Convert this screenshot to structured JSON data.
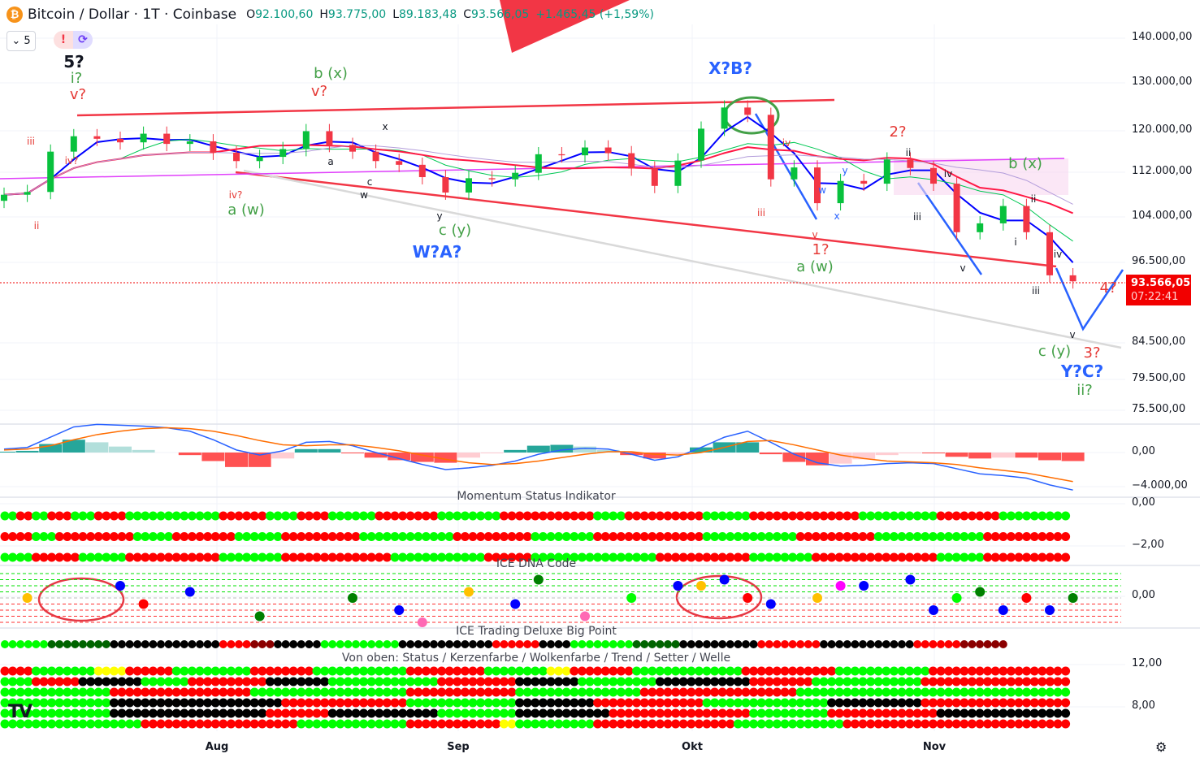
{
  "header": {
    "symbol": "Bitcoin / Dollar · 1T · Coinbase",
    "icon": "bitcoin-icon",
    "o_label": "O",
    "o": "92.100,60",
    "h_label": "H",
    "h": "93.775,00",
    "l_label": "L",
    "l": "89.183,48",
    "c_label": "C",
    "c": "93.566,05",
    "change": "+1.465,45 (+1,59%)",
    "up_color": "#089981"
  },
  "toolbar": {
    "collapse_count": "5",
    "alert_badge": "!",
    "sync_badge": "⟳"
  },
  "price_tag": {
    "price": "93.566,05",
    "countdown": "07:22:41",
    "color": "#f20000"
  },
  "colors": {
    "up": "#08c13d",
    "down": "#f23645",
    "channel": "#f23645",
    "wave_blue": "#2962ff"
  },
  "chart_data": {
    "type": "candlestick",
    "scale": "log",
    "interval": "1T (daily, sampled every 3 days)",
    "start": "Jul 4",
    "closes": [
      108.0,
      108.5,
      116.0,
      119.0,
      118.5,
      117.8,
      119.5,
      117.5,
      118.0,
      115.8,
      114.2,
      115.0,
      116.5,
      120.0,
      117.3,
      116.0,
      114.2,
      113.5,
      111.2,
      108.4,
      111.0,
      110.8,
      112.0,
      115.5,
      115.3,
      116.8,
      115.7,
      112.8,
      109.6,
      114.3,
      120.5,
      124.8,
      123.3,
      110.8,
      113.0,
      106.5,
      110.5,
      110.0,
      114.5,
      112.9,
      110.0,
      101.5,
      103.0,
      106.0,
      101.5,
      94.5,
      93.566
    ],
    "price_unit": "thousand USD",
    "y_ticks": [
      "140.000,00",
      "130.000,00",
      "120.000,00",
      "112.000,00",
      "104.000,00",
      "96.500,00",
      "84.500,00",
      "79.500,00",
      "75.500,00"
    ],
    "x_ticks": [
      "Aug",
      "Sep",
      "Okt",
      "Nov"
    ],
    "macd": {
      "macd": [
        400,
        600,
        1800,
        3000,
        3300,
        3200,
        3100,
        2900,
        2500,
        1500,
        300,
        -300,
        200,
        1200,
        1300,
        800,
        0,
        -700,
        -1400,
        -2000,
        -1800,
        -1500,
        -1000,
        -200,
        300,
        500,
        400,
        -200,
        -900,
        -500,
        600,
        1800,
        2500,
        1200,
        -200,
        -1200,
        -1600,
        -1500,
        -1300,
        -1200,
        -1300,
        -1900,
        -2500,
        -2700,
        -3000,
        -3800,
        -4400
      ],
      "signal": [
        300,
        400,
        800,
        1500,
        2100,
        2500,
        2800,
        2900,
        2800,
        2500,
        2000,
        1400,
        900,
        800,
        900,
        900,
        600,
        200,
        -300,
        -800,
        -1200,
        -1400,
        -1300,
        -1000,
        -600,
        -200,
        100,
        100,
        -200,
        -300,
        0,
        600,
        1300,
        1400,
        900,
        300,
        -300,
        -700,
        -1000,
        -1100,
        -1200,
        -1400,
        -1800,
        -2100,
        -2400,
        -2900,
        -3400
      ],
      "y_ticks": [
        "0,00",
        "−4.000,00"
      ]
    },
    "momentum": {
      "title": "Momentum Status Indikator",
      "y_ticks": [
        "0,00",
        "−2,00"
      ],
      "rows": [
        [
          [
            "g",
            2
          ],
          [
            "r",
            2
          ],
          [
            "g",
            2
          ],
          [
            "r",
            3
          ],
          [
            "g",
            3
          ],
          [
            "r",
            4
          ],
          [
            "g",
            12
          ],
          [
            "r",
            6
          ],
          [
            "g",
            4
          ],
          [
            "r",
            4
          ],
          [
            "g",
            6
          ],
          [
            "r",
            8
          ],
          [
            "g",
            8
          ],
          [
            "r",
            12
          ],
          [
            "g",
            4
          ],
          [
            "r",
            10
          ],
          [
            "g",
            6
          ],
          [
            "r",
            14
          ],
          [
            "g",
            10
          ],
          [
            "r",
            8
          ],
          [
            "g",
            10
          ]
        ],
        [
          [
            "r",
            4
          ],
          [
            "g",
            3
          ],
          [
            "r",
            10
          ],
          [
            "g",
            5
          ],
          [
            "r",
            8
          ],
          [
            "g",
            6
          ],
          [
            "r",
            10
          ],
          [
            "g",
            12
          ],
          [
            "r",
            10
          ],
          [
            "g",
            8
          ],
          [
            "r",
            14
          ],
          [
            "g",
            12
          ],
          [
            "r",
            10
          ],
          [
            "g",
            14
          ],
          [
            "r",
            11
          ]
        ],
        [
          [
            "g",
            4
          ],
          [
            "r",
            6
          ],
          [
            "g",
            6
          ],
          [
            "r",
            12
          ],
          [
            "g",
            8
          ],
          [
            "r",
            14
          ],
          [
            "g",
            12
          ],
          [
            "r",
            6
          ],
          [
            "g",
            16
          ],
          [
            "r",
            12
          ],
          [
            "g",
            8
          ],
          [
            "r",
            16
          ],
          [
            "g",
            6
          ],
          [
            "r",
            11
          ]
        ]
      ]
    },
    "dna": {
      "title": "ICE DNA Code",
      "y_ticks": [
        "0,00"
      ],
      "dots": [
        [
          1,
          0,
          "#ffc000"
        ],
        [
          5,
          2,
          "#0000ff"
        ],
        [
          6,
          -1,
          "#ff0000"
        ],
        [
          8,
          1,
          "#0000ff"
        ],
        [
          11,
          -3,
          "#008000"
        ],
        [
          15,
          0,
          "#008000"
        ],
        [
          17,
          -2,
          "#0000ff"
        ],
        [
          18,
          -4,
          "#ff69b4"
        ],
        [
          20,
          1,
          "#ffc000"
        ],
        [
          22,
          -1,
          "#0000ff"
        ],
        [
          23,
          3,
          "#008000"
        ],
        [
          25,
          -3,
          "#ff69b4"
        ],
        [
          27,
          0,
          "#00ff00"
        ],
        [
          30,
          2,
          "#ffc000"
        ],
        [
          29,
          2,
          "#0000ff"
        ],
        [
          31,
          3,
          "#0000ff"
        ],
        [
          32,
          0,
          "#ff0000"
        ],
        [
          33,
          -1,
          "#0000ff"
        ],
        [
          35,
          0,
          "#ffc000"
        ],
        [
          36,
          2,
          "#ff00ff"
        ],
        [
          37,
          2,
          "#0000ff"
        ],
        [
          39,
          3,
          "#0000ff"
        ],
        [
          40,
          -2,
          "#0000ff"
        ],
        [
          41,
          0,
          "#00ff00"
        ],
        [
          42,
          1,
          "#008000"
        ],
        [
          43,
          -2,
          "#0000ff"
        ],
        [
          44,
          0,
          "#ff0000"
        ],
        [
          45,
          -2,
          "#0000ff"
        ],
        [
          46,
          0,
          "#008000"
        ]
      ]
    },
    "bigpoint": {
      "title": "ICE Trading Deluxe Big Point",
      "row": [
        [
          "g",
          6
        ],
        [
          "dg",
          8
        ],
        [
          "k",
          14
        ],
        [
          "r",
          4
        ],
        [
          "dr",
          3
        ],
        [
          "k",
          6
        ],
        [
          "g",
          10
        ],
        [
          "k",
          12
        ],
        [
          "r",
          6
        ],
        [
          "k",
          4
        ],
        [
          "g",
          8
        ],
        [
          "dg",
          6
        ],
        [
          "k",
          10
        ],
        [
          "r",
          8
        ],
        [
          "k",
          12
        ],
        [
          "r",
          6
        ],
        [
          "dr",
          6
        ]
      ]
    },
    "bottom": {
      "caption": "Von oben: Status / Kerzenfarbe / Wolkenfarbe / Trend / Setter / Welle",
      "y_ticks": [
        "12,00",
        "8,00"
      ],
      "rows": [
        [
          [
            "r",
            4
          ],
          [
            "g",
            8
          ],
          [
            "y",
            4
          ],
          [
            "r",
            6
          ],
          [
            "g",
            10
          ],
          [
            "r",
            8
          ],
          [
            "g",
            12
          ],
          [
            "r",
            10
          ],
          [
            "g",
            8
          ],
          [
            "y",
            3
          ],
          [
            "r",
            8
          ],
          [
            "g",
            14
          ],
          [
            "r",
            12
          ],
          [
            "g",
            12
          ],
          [
            "r",
            18
          ]
        ],
        [
          [
            "g",
            4
          ],
          [
            "r",
            6
          ],
          [
            "k",
            8
          ],
          [
            "g",
            6
          ],
          [
            "r",
            10
          ],
          [
            "k",
            8
          ],
          [
            "g",
            14
          ],
          [
            "r",
            10
          ],
          [
            "k",
            8
          ],
          [
            "g",
            10
          ],
          [
            "k",
            12
          ],
          [
            "r",
            8
          ],
          [
            "g",
            14
          ],
          [
            "r",
            19
          ]
        ],
        [
          [
            "g",
            14
          ],
          [
            "r",
            18
          ],
          [
            "g",
            20
          ],
          [
            "r",
            14
          ],
          [
            "g",
            16
          ],
          [
            "r",
            20
          ],
          [
            "g",
            35
          ]
        ],
        [
          [
            "g",
            14
          ],
          [
            "k",
            22
          ],
          [
            "r",
            16
          ],
          [
            "g",
            14
          ],
          [
            "k",
            10
          ],
          [
            "r",
            14
          ],
          [
            "g",
            16
          ],
          [
            "k",
            12
          ],
          [
            "r",
            19
          ],
          [
            "k",
            0
          ]
        ],
        [
          [
            "g",
            14
          ],
          [
            "k",
            20
          ],
          [
            "r",
            8
          ],
          [
            "k",
            14
          ],
          [
            "g",
            10
          ],
          [
            "k",
            12
          ],
          [
            "r",
            18
          ],
          [
            "g",
            10
          ],
          [
            "r",
            14
          ],
          [
            "k",
            17
          ]
        ],
        [
          [
            "g",
            18
          ],
          [
            "r",
            20
          ],
          [
            "g",
            14
          ],
          [
            "r",
            12
          ],
          [
            "y",
            2
          ],
          [
            "g",
            10
          ],
          [
            "r",
            18
          ],
          [
            "g",
            14
          ],
          [
            "r",
            29
          ]
        ]
      ]
    }
  },
  "annotations": [
    {
      "text": "5?",
      "color": "#131722"
    },
    {
      "text": "i?",
      "color": "#43a047"
    },
    {
      "text": "v?",
      "color": "#e53935"
    },
    {
      "text": "iii",
      "color": "#e53935"
    },
    {
      "text": "ii",
      "color": "#e53935"
    },
    {
      "text": "iv?",
      "color": "#e53935"
    },
    {
      "text": "iv?",
      "color": "#e53935"
    },
    {
      "text": "a (w)",
      "color": "#43a047"
    },
    {
      "text": "b (x)",
      "color": "#43a047"
    },
    {
      "text": "v?",
      "color": "#e53935"
    },
    {
      "text": "c (y)",
      "color": "#43a047"
    },
    {
      "text": "W?A?",
      "color": "#2962ff"
    },
    {
      "text": "X?B?",
      "color": "#2962ff"
    },
    {
      "text": "iii",
      "color": "#e53935"
    },
    {
      "text": "iv",
      "color": "#e53935"
    },
    {
      "text": "v",
      "color": "#e53935"
    },
    {
      "text": "1?",
      "color": "#e53935"
    },
    {
      "text": "a (w)",
      "color": "#43a047"
    },
    {
      "text": "2?",
      "color": "#e53935"
    },
    {
      "text": "ii",
      "color": "#131722"
    },
    {
      "text": "iii",
      "color": "#131722"
    },
    {
      "text": "iv",
      "color": "#131722"
    },
    {
      "text": "v",
      "color": "#131722"
    },
    {
      "text": "b (x)",
      "color": "#43a047"
    },
    {
      "text": "ii",
      "color": "#131722"
    },
    {
      "text": "i",
      "color": "#131722"
    },
    {
      "text": "iii",
      "color": "#131722"
    },
    {
      "text": "iv",
      "color": "#131722"
    },
    {
      "text": "v",
      "color": "#131722"
    },
    {
      "text": "4?",
      "color": "#e53935"
    },
    {
      "text": "c (y)",
      "color": "#43a047"
    },
    {
      "text": "3?",
      "color": "#e53935"
    },
    {
      "text": "Y?C?",
      "color": "#2962ff"
    },
    {
      "text": "ii?",
      "color": "#43a047"
    },
    {
      "text": "x",
      "color": "#131722"
    },
    {
      "text": "a",
      "color": "#131722"
    },
    {
      "text": "c",
      "color": "#131722"
    },
    {
      "text": "w",
      "color": "#131722"
    },
    {
      "text": "y",
      "color": "#131722"
    },
    {
      "text": "w",
      "color": "#2962ff"
    },
    {
      "text": "x",
      "color": "#2962ff"
    },
    {
      "text": "y",
      "color": "#2962ff"
    }
  ],
  "footer": {
    "logo": "TV",
    "settings_icon": "gear-icon"
  }
}
